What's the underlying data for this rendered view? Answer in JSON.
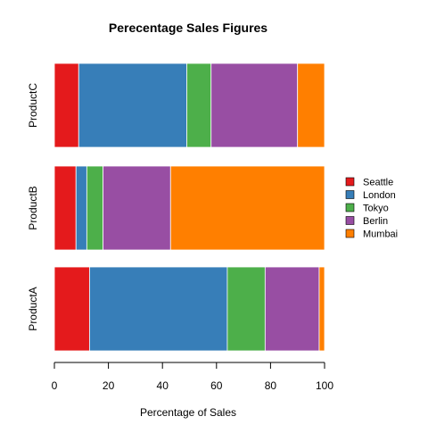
{
  "chart_data": {
    "type": "bar",
    "orientation": "horizontal",
    "stacked": true,
    "title": "Perecentage Sales Figures",
    "xlabel": "Percentage of Sales",
    "ylabel": "",
    "xlim": [
      0,
      100
    ],
    "xticks": [
      "0",
      "20",
      "40",
      "60",
      "80",
      "100"
    ],
    "categories": [
      "ProductA",
      "ProductB",
      "ProductC"
    ],
    "series": [
      {
        "name": "Seattle",
        "color": "#E41A1C",
        "values": [
          13,
          8,
          9
        ]
      },
      {
        "name": "London",
        "color": "#377EB8",
        "values": [
          51,
          4,
          40
        ]
      },
      {
        "name": "Tokyo",
        "color": "#4DAF4A",
        "values": [
          14,
          6,
          9
        ]
      },
      {
        "name": "Berlin",
        "color": "#984EA3",
        "values": [
          20,
          25,
          32
        ]
      },
      {
        "name": "Mumbai",
        "color": "#FF7F00",
        "values": [
          2,
          57,
          10
        ]
      }
    ],
    "grid": false,
    "legend_position": "right"
  }
}
